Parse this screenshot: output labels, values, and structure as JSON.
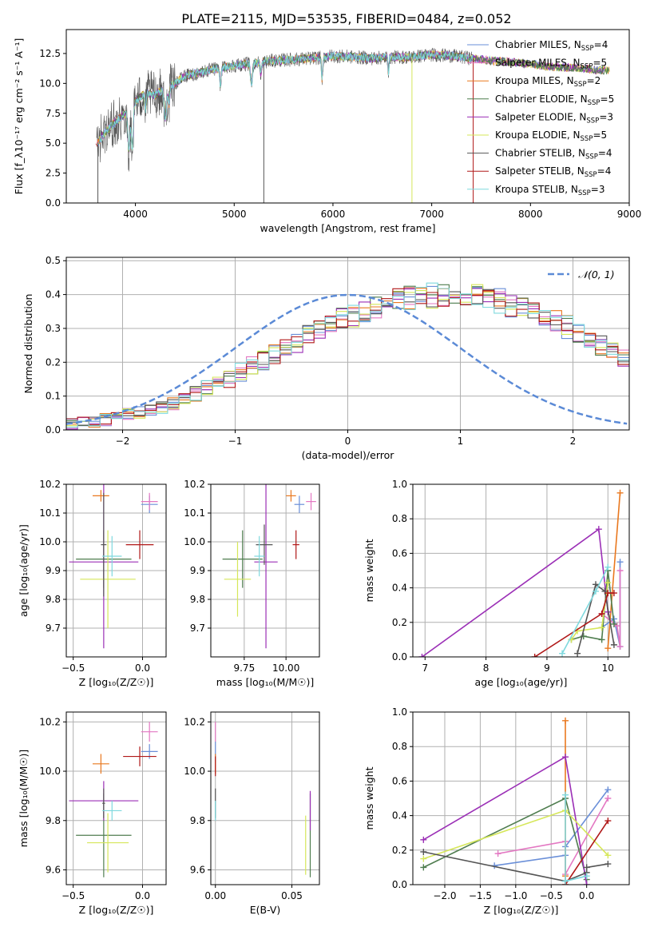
{
  "figure_title": "PLATE=2115, MJD=53535, FIBERID=0484, z=0.052",
  "colors": {
    "Chabrier MILES": "#6a8fd8",
    "Salpeter MILES": "#e377c2",
    "Kroupa MILES": "#e9781f",
    "Chabrier ELODIE": "#4f7d4f",
    "Salpeter ELODIE": "#9b2fb6",
    "Kroupa ELODIE": "#d6e75a",
    "Chabrier STELIB": "#555555",
    "Salpeter STELIB": "#b01818",
    "Kroupa STELIB": "#7fd9de",
    "normal": "#5b8ad6"
  },
  "chart_data": [
    {
      "id": "spectrum",
      "type": "line",
      "xlabel": "wavelength [Angstrom, rest frame]",
      "ylabel": "Flux [f_λ10⁻¹⁷ erg cm⁻² s⁻¹ A⁻¹]",
      "xlim": [
        3300,
        9000
      ],
      "ylim": [
        0,
        14.5
      ],
      "xticks": [
        "4000",
        "5000",
        "6000",
        "7000",
        "8000",
        "9000"
      ],
      "yticks": [
        "0.0",
        "2.5",
        "5.0",
        "7.5",
        "10.0",
        "12.5"
      ],
      "grid": false,
      "legend_position": "right",
      "x": [
        3600,
        3700,
        3800,
        3900,
        4000,
        4100,
        4200,
        4300,
        4400,
        4500,
        4600,
        4800,
        5000,
        5200,
        5400,
        5600,
        5800,
        6000,
        6200,
        6400,
        6600,
        6800,
        7000,
        7200,
        7400,
        7600,
        7800,
        8000,
        8200,
        8400,
        8600,
        8700
      ],
      "y": [
        4.8,
        6.0,
        6.8,
        7.5,
        8.5,
        9.2,
        9.0,
        9.6,
        10.0,
        10.6,
        10.8,
        11.2,
        11.5,
        11.7,
        11.9,
        12.0,
        12.1,
        12.3,
        12.2,
        12.1,
        12.2,
        12.2,
        12.4,
        12.3,
        12.1,
        11.9,
        11.8,
        11.6,
        11.4,
        11.3,
        11.2,
        11.1
      ],
      "series": [
        {
          "name": "Chabrier MILES, N_SSP=4",
          "label_main": "Chabrier MILES, N",
          "label_sub": "SSP",
          "label_tail": "=4"
        },
        {
          "name": "Salpeter MILES, N_SSP=5",
          "label_main": "Salpeter MILES, N",
          "label_sub": "SSP",
          "label_tail": "=5"
        },
        {
          "name": "Kroupa MILES, N_SSP=2",
          "label_main": "Kroupa MILES, N",
          "label_sub": "SSP",
          "label_tail": "=2"
        },
        {
          "name": "Chabrier ELODIE, N_SSP=5",
          "label_main": "Chabrier ELODIE, N",
          "label_sub": "SSP",
          "label_tail": "=5"
        },
        {
          "name": "Salpeter ELODIE, N_SSP=3",
          "label_main": "Salpeter ELODIE, N",
          "label_sub": "SSP",
          "label_tail": "=3"
        },
        {
          "name": "Kroupa ELODIE, N_SSP=5",
          "label_main": "Kroupa ELODIE, N",
          "label_sub": "SSP",
          "label_tail": "=5"
        },
        {
          "name": "Chabrier STELIB, N_SSP=4",
          "label_main": "Chabrier STELIB, N",
          "label_sub": "SSP",
          "label_tail": "=4"
        },
        {
          "name": "Salpeter STELIB, N_SSP=4",
          "label_main": "Salpeter STELIB, N",
          "label_sub": "SSP",
          "label_tail": "=4"
        },
        {
          "name": "Kroupa STELIB, N_SSP=3",
          "label_main": "Kroupa STELIB, N",
          "label_sub": "SSP",
          "label_tail": "=3"
        }
      ]
    },
    {
      "id": "residuals",
      "type": "line",
      "xlabel": "(data-model)/error",
      "ylabel": "Normed distribution",
      "xlim": [
        -2.5,
        2.5
      ],
      "ylim": [
        0,
        0.51
      ],
      "xticks": [
        "−2",
        "−1",
        "0",
        "1",
        "2"
      ],
      "yticks": [
        "0.0",
        "0.1",
        "0.2",
        "0.3",
        "0.4",
        "0.5"
      ],
      "grid": true,
      "legend_position": "top-right",
      "legend_label": "𝒩(0, 1)",
      "bin_width": 0.1,
      "bins_start": -2.5,
      "counts_mean": [
        0.018,
        0.022,
        0.026,
        0.03,
        0.036,
        0.044,
        0.052,
        0.06,
        0.07,
        0.082,
        0.094,
        0.108,
        0.122,
        0.138,
        0.152,
        0.17,
        0.188,
        0.204,
        0.222,
        0.24,
        0.258,
        0.276,
        0.294,
        0.31,
        0.326,
        0.34,
        0.352,
        0.364,
        0.374,
        0.382,
        0.388,
        0.392,
        0.396,
        0.398,
        0.398,
        0.396,
        0.392,
        0.386,
        0.38,
        0.37,
        0.36,
        0.348,
        0.334,
        0.32,
        0.304,
        0.288,
        0.27,
        0.252,
        0.234,
        0.216
      ]
    },
    {
      "id": "age_vs_Z",
      "type": "scatter",
      "xlabel": "Z [log₁₀(Z/Z☉)]",
      "ylabel": "age  [log₁₀(age/yr)]",
      "xlim": [
        -0.55,
        0.17
      ],
      "ylim": [
        9.6,
        10.2
      ],
      "xticks": [
        "−0.5",
        "0.0"
      ],
      "yticks": [
        "9.7",
        "9.8",
        "9.9",
        "10.0",
        "10.1",
        "10.2"
      ],
      "grid": true,
      "points": [
        {
          "series": "Chabrier MILES",
          "x": 0.05,
          "xerr": 0.06,
          "y": 10.13,
          "yerr": 0.03
        },
        {
          "series": "Salpeter MILES",
          "x": 0.05,
          "xerr": 0.06,
          "y": 10.14,
          "yerr": 0.03
        },
        {
          "series": "Kroupa MILES",
          "x": -0.3,
          "xerr": 0.06,
          "y": 10.16,
          "yerr": 0.02
        },
        {
          "series": "Chabrier ELODIE",
          "x": -0.28,
          "xerr": 0.2,
          "y": 9.94,
          "yerr": 0.1
        },
        {
          "series": "Salpeter ELODIE",
          "x": -0.28,
          "xerr": 0.25,
          "y": 9.93,
          "yerr": 0.3
        },
        {
          "series": "Kroupa ELODIE",
          "x": -0.25,
          "xerr": 0.2,
          "y": 9.87,
          "yerr": 0.17
        },
        {
          "series": "Chabrier STELIB",
          "x": -0.28,
          "xerr": 0.02,
          "y": 9.99,
          "yerr": 0.18
        },
        {
          "series": "Salpeter STELIB",
          "x": -0.02,
          "xerr": 0.1,
          "y": 9.99,
          "yerr": 0.05
        },
        {
          "series": "Kroupa STELIB",
          "x": -0.22,
          "xerr": 0.07,
          "y": 9.95,
          "yerr": 0.07
        }
      ]
    },
    {
      "id": "age_vs_mass",
      "type": "scatter",
      "xlabel": "mass [log₁₀(M/M☉)]",
      "ylabel": "",
      "xlim": [
        9.55,
        10.2
      ],
      "ylim": [
        9.6,
        10.2
      ],
      "xticks": [
        "9.75",
        "10.00"
      ],
      "yticks": [
        "9.7",
        "9.8",
        "9.9",
        "10.0",
        "10.1",
        "10.2"
      ],
      "grid": true,
      "points": [
        {
          "series": "Chabrier MILES",
          "x": 10.08,
          "xerr": 0.03,
          "y": 10.13,
          "yerr": 0.03
        },
        {
          "series": "Salpeter MILES",
          "x": 10.15,
          "xerr": 0.03,
          "y": 10.14,
          "yerr": 0.03
        },
        {
          "series": "Kroupa MILES",
          "x": 10.03,
          "xerr": 0.03,
          "y": 10.16,
          "yerr": 0.02
        },
        {
          "series": "Chabrier ELODIE",
          "x": 9.74,
          "xerr": 0.12,
          "y": 9.94,
          "yerr": 0.1
        },
        {
          "series": "Salpeter ELODIE",
          "x": 9.88,
          "xerr": 0.07,
          "y": 9.93,
          "yerr": 0.3
        },
        {
          "series": "Kroupa ELODIE",
          "x": 9.71,
          "xerr": 0.08,
          "y": 9.87,
          "yerr": 0.13
        },
        {
          "series": "Chabrier STELIB",
          "x": 9.87,
          "xerr": 0.05,
          "y": 9.99,
          "yerr": 0.07
        },
        {
          "series": "Salpeter STELIB",
          "x": 10.06,
          "xerr": 0.02,
          "y": 9.99,
          "yerr": 0.05
        },
        {
          "series": "Kroupa STELIB",
          "x": 9.84,
          "xerr": 0.03,
          "y": 9.95,
          "yerr": 0.07
        }
      ]
    },
    {
      "id": "weight_vs_age",
      "type": "line",
      "xlabel": "age  [log₁₀(age/yr)]",
      "ylabel": "mass weight",
      "xlim": [
        6.8,
        10.35
      ],
      "ylim": [
        0,
        1.0
      ],
      "xticks": [
        "7",
        "8",
        "9",
        "10"
      ],
      "yticks": [
        "0.0",
        "0.2",
        "0.4",
        "0.6",
        "0.8",
        "1.0"
      ],
      "grid": true,
      "series": [
        {
          "name": "Chabrier MILES",
          "x": [
            9.9,
            10.1,
            10.2,
            10.2
          ],
          "y": [
            0.17,
            0.22,
            0.06,
            0.55
          ]
        },
        {
          "name": "Salpeter MILES",
          "x": [
            9.9,
            10.15,
            10.2,
            10.2
          ],
          "y": [
            0.25,
            0.18,
            0.06,
            0.5
          ]
        },
        {
          "name": "Kroupa MILES",
          "x": [
            10.0,
            10.2
          ],
          "y": [
            0.05,
            0.95
          ]
        },
        {
          "name": "Chabrier ELODIE",
          "x": [
            9.4,
            9.6,
            9.9,
            10.0,
            10.1
          ],
          "y": [
            0.1,
            0.12,
            0.1,
            0.5,
            0.19
          ]
        },
        {
          "name": "Salpeter ELODIE",
          "x": [
            6.95,
            9.85,
            10.0
          ],
          "y": [
            0.0,
            0.74,
            0.26
          ]
        },
        {
          "name": "Kroupa ELODIE",
          "x": [
            9.4,
            9.5,
            9.9,
            10.0
          ],
          "y": [
            0.1,
            0.15,
            0.17,
            0.43
          ]
        },
        {
          "name": "Chabrier STELIB",
          "x": [
            9.5,
            9.8,
            9.95,
            10.1
          ],
          "y": [
            0.02,
            0.42,
            0.38,
            0.07
          ]
        },
        {
          "name": "Salpeter STELIB",
          "x": [
            8.8,
            9.9,
            10.0,
            10.1
          ],
          "y": [
            0.0,
            0.25,
            0.37,
            0.37
          ]
        },
        {
          "name": "Kroupa STELIB",
          "x": [
            9.25,
            9.8,
            10.0
          ],
          "y": [
            0.02,
            0.38,
            0.52
          ]
        }
      ]
    },
    {
      "id": "mass_vs_Z",
      "type": "scatter",
      "xlabel": "Z [log₁₀(Z/Z☉)]",
      "ylabel": "mass [log₁₀(M/M☉)]",
      "xlim": [
        -0.55,
        0.17
      ],
      "ylim": [
        9.54,
        10.24
      ],
      "xticks": [
        "−0.5",
        "0.0"
      ],
      "yticks": [
        "9.6",
        "9.8",
        "10.0",
        "10.2"
      ],
      "grid": true,
      "points": [
        {
          "series": "Chabrier MILES",
          "x": 0.05,
          "xerr": 0.06,
          "y": 10.08,
          "yerr": 0.03
        },
        {
          "series": "Salpeter MILES",
          "x": 0.05,
          "xerr": 0.06,
          "y": 10.16,
          "yerr": 0.04
        },
        {
          "series": "Kroupa MILES",
          "x": -0.3,
          "xerr": 0.06,
          "y": 10.03,
          "yerr": 0.04
        },
        {
          "series": "Chabrier ELODIE",
          "x": -0.28,
          "xerr": 0.2,
          "y": 9.74,
          "yerr": 0.17
        },
        {
          "series": "Salpeter ELODIE",
          "x": -0.28,
          "xerr": 0.25,
          "y": 9.88,
          "yerr": 0.08
        },
        {
          "series": "Kroupa ELODIE",
          "x": -0.25,
          "xerr": 0.15,
          "y": 9.71,
          "yerr": 0.12
        },
        {
          "series": "Chabrier STELIB",
          "x": -0.28,
          "xerr": 0.01,
          "y": 9.87,
          "yerr": 0.06
        },
        {
          "series": "Salpeter STELIB",
          "x": -0.02,
          "xerr": 0.12,
          "y": 10.06,
          "yerr": 0.04
        },
        {
          "series": "Kroupa STELIB",
          "x": -0.22,
          "xerr": 0.07,
          "y": 9.84,
          "yerr": 0.04
        }
      ]
    },
    {
      "id": "mass_vs_EBV",
      "type": "scatter",
      "xlabel": "E(B-V)",
      "ylabel": "",
      "xlim": [
        -0.003,
        0.068
      ],
      "ylim": [
        9.54,
        10.24
      ],
      "xticks": [
        "0.00",
        "0.05"
      ],
      "yticks": [
        "9.6",
        "9.8",
        "10.0",
        "10.2"
      ],
      "grid": true,
      "points": [
        {
          "series": "Chabrier MILES",
          "x": 0.0,
          "xerr": 0.0,
          "y": 10.08,
          "yerr": 0.04
        },
        {
          "series": "Salpeter MILES",
          "x": 0.0,
          "xerr": 0.0,
          "y": 10.16,
          "yerr": 0.04
        },
        {
          "series": "Kroupa MILES",
          "x": 0.0,
          "xerr": 0.0,
          "y": 10.03,
          "yerr": 0.04
        },
        {
          "series": "Chabrier ELODIE",
          "x": 0.062,
          "xerr": 0.0,
          "y": 9.74,
          "yerr": 0.17
        },
        {
          "series": "Salpeter ELODIE",
          "x": 0.062,
          "xerr": 0.0,
          "y": 9.84,
          "yerr": 0.08
        },
        {
          "series": "Kroupa ELODIE",
          "x": 0.059,
          "xerr": 0.0,
          "y": 9.7,
          "yerr": 0.12
        },
        {
          "series": "Chabrier STELIB",
          "x": 0.0,
          "xerr": 0.0,
          "y": 9.87,
          "yerr": 0.06
        },
        {
          "series": "Salpeter STELIB",
          "x": 0.0,
          "xerr": 0.0,
          "y": 10.02,
          "yerr": 0.04
        },
        {
          "series": "Kroupa STELIB",
          "x": 0.0,
          "xerr": 0.0,
          "y": 9.84,
          "yerr": 0.04
        }
      ]
    },
    {
      "id": "weight_vs_Z",
      "type": "line",
      "xlabel": "Z [log₁₀(Z/Z☉)]",
      "ylabel": "mass weight",
      "xlim": [
        -2.45,
        0.6
      ],
      "ylim": [
        0,
        1.0
      ],
      "xticks": [
        "−2.0",
        "−1.5",
        "−1.0",
        "−0.5",
        "0.0"
      ],
      "yticks": [
        "0.0",
        "0.2",
        "0.4",
        "0.6",
        "0.8",
        "1.0"
      ],
      "grid": true,
      "series": [
        {
          "name": "Chabrier MILES",
          "x": [
            -1.3,
            -0.3,
            -0.3,
            0.3
          ],
          "y": [
            0.11,
            0.17,
            0.22,
            0.55
          ]
        },
        {
          "name": "Salpeter MILES",
          "x": [
            -1.25,
            -0.3,
            -0.3,
            0.3
          ],
          "y": [
            0.18,
            0.25,
            0.06,
            0.5
          ]
        },
        {
          "name": "Kroupa MILES",
          "x": [
            -0.3,
            -0.3
          ],
          "y": [
            0.95,
            0.05
          ]
        },
        {
          "name": "Chabrier ELODIE",
          "x": [
            -2.3,
            -0.3,
            0.0
          ],
          "y": [
            0.1,
            0.5,
            0.03
          ]
        },
        {
          "name": "Salpeter ELODIE",
          "x": [
            -2.3,
            -0.3,
            0.0
          ],
          "y": [
            0.26,
            0.74,
            0.0
          ]
        },
        {
          "name": "Kroupa ELODIE",
          "x": [
            -2.3,
            -0.3,
            0.3
          ],
          "y": [
            0.15,
            0.43,
            0.17
          ]
        },
        {
          "name": "Chabrier STELIB",
          "x": [
            -2.3,
            -0.3,
            0.0,
            0.0,
            0.3
          ],
          "y": [
            0.19,
            0.02,
            0.07,
            0.1,
            0.12
          ]
        },
        {
          "name": "Salpeter STELIB",
          "x": [
            -0.3,
            0.3
          ],
          "y": [
            0.0,
            0.37
          ]
        },
        {
          "name": "Kroupa STELIB",
          "x": [
            -0.3,
            -0.3,
            0.0
          ],
          "y": [
            0.52,
            0.02,
            0.05
          ]
        }
      ]
    }
  ]
}
